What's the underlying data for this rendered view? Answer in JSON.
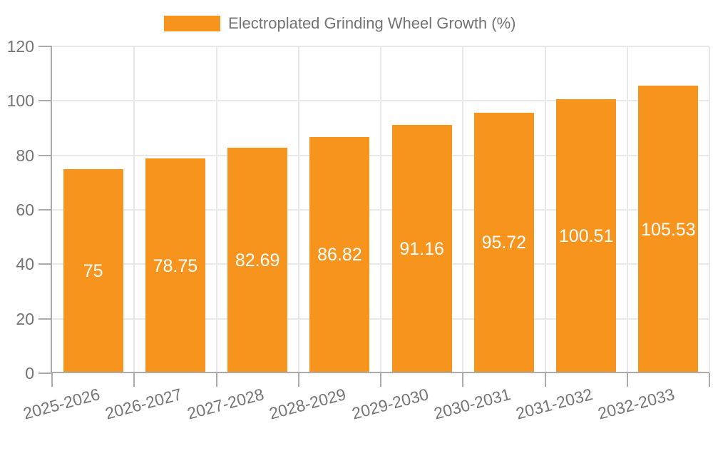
{
  "colors": {
    "bar": "#F7941E",
    "axis_label": "#757575",
    "legend_text": "#747474",
    "value_label": "#FFFFFF",
    "grid_line": "#E8E8E8",
    "axis_line": "#ABABAB",
    "background": "#FFFFFF"
  },
  "chart_data": {
    "type": "bar",
    "title": "",
    "legend": "Electroplated Grinding Wheel Growth (%)",
    "legend_position": "top",
    "categories": [
      "2025-2026",
      "2026-2027",
      "2027-2028",
      "2028-2029",
      "2029-2030",
      "2030-2031",
      "2031-2032",
      "2032-2033"
    ],
    "series": [
      {
        "name": "Electroplated Grinding Wheel Growth (%)",
        "values": [
          75,
          78.75,
          82.69,
          86.82,
          91.16,
          95.72,
          100.51,
          105.53
        ]
      }
    ],
    "value_labels": [
      "75",
      "78.75",
      "82.69",
      "86.82",
      "91.16",
      "95.72",
      "100.51",
      "105.53"
    ],
    "xlabel": "",
    "ylabel": "",
    "ylim": [
      0,
      120
    ],
    "ytick_step": 20,
    "ytick_labels": [
      "0",
      "20",
      "40",
      "60",
      "80",
      "100",
      "120"
    ],
    "grid": true,
    "x_label_rotation_deg": -15
  }
}
